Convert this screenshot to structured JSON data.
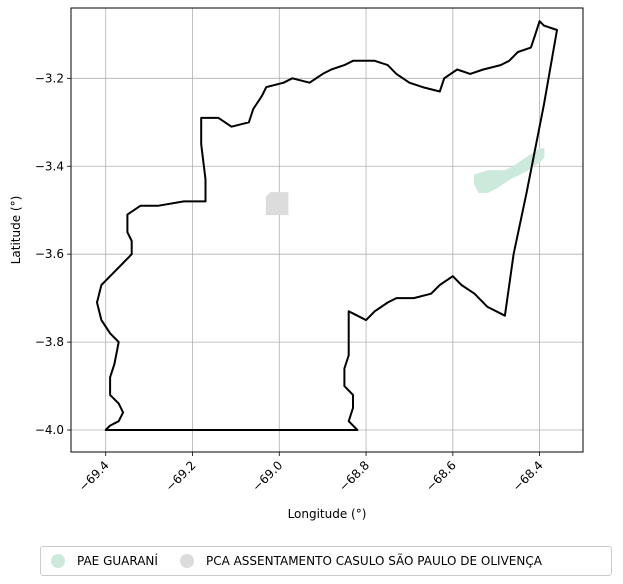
{
  "chart_data": {
    "type": "map",
    "xlabel": "Longitude (°)",
    "ylabel": "Latitude (°)",
    "xlim": [
      -69.48,
      -68.3
    ],
    "ylim": [
      -4.05,
      -3.04
    ],
    "xticks": [
      -69.4,
      -69.2,
      -69.0,
      -68.8,
      -68.6,
      -68.4
    ],
    "xtick_labels": [
      "−69.4",
      "−69.2",
      "−69.0",
      "−68.8",
      "−68.6",
      "−68.4"
    ],
    "yticks": [
      -3.2,
      -3.4,
      -3.6,
      -3.8,
      -4.0
    ],
    "ytick_labels": [
      "−3.2",
      "−3.4",
      "−3.6",
      "−3.8",
      "−4.0"
    ],
    "grid": true,
    "legend_position": "bottom",
    "boundary": {
      "color": "#000000",
      "coords": [
        [
          -69.4,
          -4.0
        ],
        [
          -69.39,
          -3.99
        ],
        [
          -69.37,
          -3.98
        ],
        [
          -69.36,
          -3.96
        ],
        [
          -69.37,
          -3.94
        ],
        [
          -69.39,
          -3.92
        ],
        [
          -69.39,
          -3.88
        ],
        [
          -69.38,
          -3.85
        ],
        [
          -69.37,
          -3.8
        ],
        [
          -69.39,
          -3.78
        ],
        [
          -69.41,
          -3.75
        ],
        [
          -69.42,
          -3.71
        ],
        [
          -69.41,
          -3.67
        ],
        [
          -69.39,
          -3.65
        ],
        [
          -69.36,
          -3.62
        ],
        [
          -69.34,
          -3.6
        ],
        [
          -69.34,
          -3.57
        ],
        [
          -69.35,
          -3.55
        ],
        [
          -69.35,
          -3.51
        ],
        [
          -69.32,
          -3.49
        ],
        [
          -69.28,
          -3.49
        ],
        [
          -69.22,
          -3.48
        ],
        [
          -69.17,
          -3.48
        ],
        [
          -69.17,
          -3.43
        ],
        [
          -69.18,
          -3.35
        ],
        [
          -69.18,
          -3.29
        ],
        [
          -69.14,
          -3.29
        ],
        [
          -69.11,
          -3.31
        ],
        [
          -69.07,
          -3.3
        ],
        [
          -69.06,
          -3.27
        ],
        [
          -69.04,
          -3.24
        ],
        [
          -69.03,
          -3.22
        ],
        [
          -68.99,
          -3.21
        ],
        [
          -68.97,
          -3.2
        ],
        [
          -68.93,
          -3.21
        ],
        [
          -68.9,
          -3.19
        ],
        [
          -68.88,
          -3.18
        ],
        [
          -68.85,
          -3.17
        ],
        [
          -68.83,
          -3.16
        ],
        [
          -68.78,
          -3.16
        ],
        [
          -68.75,
          -3.17
        ],
        [
          -68.73,
          -3.19
        ],
        [
          -68.7,
          -3.21
        ],
        [
          -68.67,
          -3.22
        ],
        [
          -68.63,
          -3.23
        ],
        [
          -68.62,
          -3.2
        ],
        [
          -68.59,
          -3.18
        ],
        [
          -68.56,
          -3.19
        ],
        [
          -68.53,
          -3.18
        ],
        [
          -68.49,
          -3.17
        ],
        [
          -68.47,
          -3.16
        ],
        [
          -68.45,
          -3.14
        ],
        [
          -68.42,
          -3.13
        ],
        [
          -68.41,
          -3.1
        ],
        [
          -68.4,
          -3.07
        ],
        [
          -68.39,
          -3.08
        ],
        [
          -68.36,
          -3.09
        ],
        [
          -68.39,
          -3.26
        ],
        [
          -68.43,
          -3.46
        ],
        [
          -68.46,
          -3.6
        ],
        [
          -68.48,
          -3.74
        ],
        [
          -68.52,
          -3.72
        ],
        [
          -68.55,
          -3.69
        ],
        [
          -68.58,
          -3.67
        ],
        [
          -68.6,
          -3.65
        ],
        [
          -68.63,
          -3.67
        ],
        [
          -68.65,
          -3.69
        ],
        [
          -68.69,
          -3.7
        ],
        [
          -68.73,
          -3.7
        ],
        [
          -68.75,
          -3.71
        ],
        [
          -68.78,
          -3.73
        ],
        [
          -68.8,
          -3.75
        ],
        [
          -68.82,
          -3.74
        ],
        [
          -68.84,
          -3.73
        ],
        [
          -68.84,
          -3.78
        ],
        [
          -68.84,
          -3.83
        ],
        [
          -68.85,
          -3.86
        ],
        [
          -68.85,
          -3.9
        ],
        [
          -68.83,
          -3.92
        ],
        [
          -68.83,
          -3.95
        ],
        [
          -68.84,
          -3.98
        ],
        [
          -68.82,
          -4.0
        ],
        [
          -68.9,
          -4.0
        ],
        [
          -69.1,
          -4.0
        ],
        [
          -69.3,
          -4.0
        ],
        [
          -69.4,
          -4.0
        ]
      ]
    },
    "series": [
      {
        "name": "PAE GUARANÍ",
        "color": "#cbeadc",
        "coords": [
          [
            -68.55,
            -3.42
          ],
          [
            -68.52,
            -3.41
          ],
          [
            -68.48,
            -3.41
          ],
          [
            -68.46,
            -3.4
          ],
          [
            -68.43,
            -3.38
          ],
          [
            -68.4,
            -3.36
          ],
          [
            -68.39,
            -3.36
          ],
          [
            -68.39,
            -3.38
          ],
          [
            -68.4,
            -3.39
          ],
          [
            -68.43,
            -3.41
          ],
          [
            -68.47,
            -3.43
          ],
          [
            -68.5,
            -3.45
          ],
          [
            -68.52,
            -3.46
          ],
          [
            -68.54,
            -3.46
          ],
          [
            -68.55,
            -3.44
          ]
        ]
      },
      {
        "name": "PCA ASSENTAMENTO CASULO SÃO PAULO DE OLIVENÇA",
        "color": "#dcdcdc",
        "coords": [
          [
            -69.02,
            -3.46
          ],
          [
            -68.98,
            -3.46
          ],
          [
            -68.98,
            -3.51
          ],
          [
            -69.03,
            -3.51
          ],
          [
            -69.03,
            -3.47
          ]
        ]
      }
    ]
  }
}
